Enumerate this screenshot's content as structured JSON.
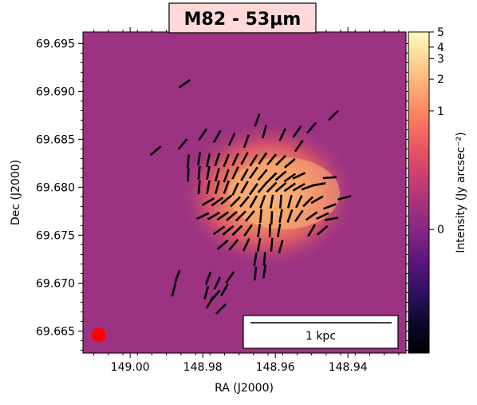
{
  "chart_data": {
    "type": "heatmap",
    "title": "M82  - 53μm",
    "title_box_color": "#ffd9d9",
    "xlabel": "RA (J2000)",
    "ylabel": "Dec (J2000)",
    "xlim": [
      149.013,
      148.924
    ],
    "ylim": [
      69.6627,
      69.6962
    ],
    "x_ticks": [
      149.0,
      148.98,
      148.96,
      148.94
    ],
    "x_tick_labels": [
      "149.00",
      "148.98",
      "148.96",
      "148.94"
    ],
    "y_ticks": [
      69.665,
      69.67,
      69.675,
      69.68,
      69.685,
      69.69,
      69.695
    ],
    "y_tick_labels": [
      "69.665",
      "69.670",
      "69.675",
      "69.680",
      "69.685",
      "69.690",
      "69.695"
    ],
    "colorbar": {
      "label": "Intensity (Jy arcsec⁻²)",
      "ticks": [
        {
          "label": "5",
          "frac": 0.0
        },
        {
          "label": "4",
          "frac": 0.047
        },
        {
          "label": "3",
          "frac": 0.083
        },
        {
          "label": "2",
          "frac": 0.147
        },
        {
          "label": "1",
          "frac": 0.246
        },
        {
          "label": "0",
          "frac": 0.615
        }
      ],
      "colors": [
        "#fcfdbf",
        "#fed395",
        "#fea772",
        "#f97b5d",
        "#e95462",
        "#c83e73",
        "#a3307e",
        "#7e2482",
        "#56147d",
        "#2c115f",
        "#0d0829",
        "#000004"
      ]
    },
    "background_color": "#9b3282",
    "emission_center": [
      148.962,
      69.6792
    ],
    "peak_color": "#fbb577",
    "beam": {
      "ra": 149.0087,
      "dec": 69.6646,
      "color": "#ff0000"
    },
    "scalebar_label": "1 kpc",
    "vectors": [
      [
        148.9855,
        69.6845,
        40
      ],
      [
        148.98,
        69.6855,
        35
      ],
      [
        148.976,
        69.6853,
        30
      ],
      [
        148.972,
        69.685,
        25
      ],
      [
        148.968,
        69.6848,
        20
      ],
      [
        148.963,
        69.6858,
        15
      ],
      [
        148.958,
        69.6855,
        25
      ],
      [
        148.954,
        69.6858,
        35
      ],
      [
        148.95,
        69.6862,
        40
      ],
      [
        148.944,
        69.6875,
        45
      ],
      [
        148.965,
        69.687,
        20
      ],
      [
        148.993,
        69.6838,
        50
      ],
      [
        148.985,
        69.6908,
        55
      ],
      [
        148.9535,
        69.6843,
        35
      ],
      [
        148.984,
        69.6827,
        5
      ],
      [
        148.981,
        69.683,
        8
      ],
      [
        148.9785,
        69.6828,
        12
      ],
      [
        148.976,
        69.6829,
        18
      ],
      [
        148.9735,
        69.6828,
        22
      ],
      [
        148.971,
        69.6829,
        25
      ],
      [
        148.9685,
        69.683,
        28
      ],
      [
        148.966,
        69.6828,
        32
      ],
      [
        148.9635,
        69.683,
        35
      ],
      [
        148.961,
        69.6829,
        40
      ],
      [
        148.9585,
        69.6828,
        45
      ],
      [
        148.956,
        69.6825,
        50
      ],
      [
        148.984,
        69.6813,
        3
      ],
      [
        148.981,
        69.6815,
        5
      ],
      [
        148.9785,
        69.6815,
        10
      ],
      [
        148.976,
        69.6813,
        15
      ],
      [
        148.9735,
        69.6812,
        20
      ],
      [
        148.971,
        69.6815,
        25
      ],
      [
        148.9685,
        69.6813,
        30
      ],
      [
        148.966,
        69.6815,
        35
      ],
      [
        148.9635,
        69.6813,
        40
      ],
      [
        148.961,
        69.681,
        45
      ],
      [
        148.9585,
        69.6812,
        50
      ],
      [
        148.956,
        69.681,
        55
      ],
      [
        148.9535,
        69.6812,
        65
      ],
      [
        148.981,
        69.68,
        5
      ],
      [
        148.9785,
        69.68,
        10
      ],
      [
        148.976,
        69.68,
        15
      ],
      [
        148.9735,
        69.68,
        20
      ],
      [
        148.971,
        69.6798,
        25
      ],
      [
        148.9685,
        69.68,
        30
      ],
      [
        148.966,
        69.6798,
        35
      ],
      [
        148.9635,
        69.68,
        40
      ],
      [
        148.961,
        69.68,
        45
      ],
      [
        148.9585,
        69.68,
        50
      ],
      [
        148.956,
        69.68,
        55
      ],
      [
        148.9535,
        69.68,
        60
      ],
      [
        148.951,
        69.68,
        70
      ],
      [
        148.948,
        69.6803,
        80
      ],
      [
        148.945,
        69.681,
        85
      ],
      [
        148.9785,
        69.6785,
        60
      ],
      [
        148.976,
        69.6785,
        55
      ],
      [
        148.9735,
        69.6787,
        50
      ],
      [
        148.971,
        69.6785,
        45
      ],
      [
        148.9685,
        69.6785,
        40
      ],
      [
        148.966,
        69.6785,
        30
      ],
      [
        148.9635,
        69.6785,
        20
      ],
      [
        148.961,
        69.6785,
        10
      ],
      [
        148.9585,
        69.6785,
        5
      ],
      [
        148.956,
        69.6785,
        15
      ],
      [
        148.9535,
        69.6785,
        25
      ],
      [
        148.951,
        69.6785,
        45
      ],
      [
        148.9485,
        69.6787,
        60
      ],
      [
        148.945,
        69.678,
        70
      ],
      [
        148.941,
        69.6789,
        75
      ],
      [
        148.98,
        69.677,
        65
      ],
      [
        148.977,
        69.677,
        60
      ],
      [
        148.9745,
        69.677,
        55
      ],
      [
        148.972,
        69.677,
        50
      ],
      [
        148.9695,
        69.677,
        45
      ],
      [
        148.967,
        69.677,
        40
      ],
      [
        148.964,
        69.677,
        5
      ],
      [
        148.961,
        69.6768,
        3
      ],
      [
        148.9585,
        69.677,
        10
      ],
      [
        148.956,
        69.677,
        20
      ],
      [
        148.9535,
        69.677,
        35
      ],
      [
        148.95,
        69.677,
        55
      ],
      [
        148.947,
        69.677,
        65
      ],
      [
        148.9445,
        69.6767,
        80
      ],
      [
        148.9755,
        69.6755,
        55
      ],
      [
        148.973,
        69.6755,
        50
      ],
      [
        148.9705,
        69.6755,
        45
      ],
      [
        148.9675,
        69.6755,
        35
      ],
      [
        148.9645,
        69.6755,
        8
      ],
      [
        148.9615,
        69.6755,
        2
      ],
      [
        148.959,
        69.6755,
        10
      ],
      [
        148.95,
        69.6755,
        30
      ],
      [
        148.947,
        69.6755,
        50
      ],
      [
        148.9745,
        69.674,
        50
      ],
      [
        148.9715,
        69.674,
        40
      ],
      [
        148.968,
        69.674,
        25
      ],
      [
        148.9645,
        69.674,
        10
      ],
      [
        148.961,
        69.674,
        5
      ],
      [
        148.9585,
        69.6738,
        15
      ],
      [
        148.9655,
        69.6725,
        10
      ],
      [
        148.963,
        69.6725,
        5
      ],
      [
        148.9655,
        69.671,
        5
      ],
      [
        148.963,
        69.6712,
        8
      ],
      [
        148.987,
        69.6707,
        20
      ],
      [
        148.988,
        69.6693,
        15
      ],
      [
        148.9785,
        69.6705,
        20
      ],
      [
        148.979,
        69.669,
        15
      ],
      [
        148.978,
        69.668,
        30
      ],
      [
        148.976,
        69.67,
        25
      ],
      [
        148.974,
        69.6693,
        30
      ],
      [
        148.9725,
        69.6706,
        35
      ],
      [
        148.9765,
        69.6687,
        40
      ],
      [
        148.975,
        69.6673,
        45
      ]
    ]
  }
}
